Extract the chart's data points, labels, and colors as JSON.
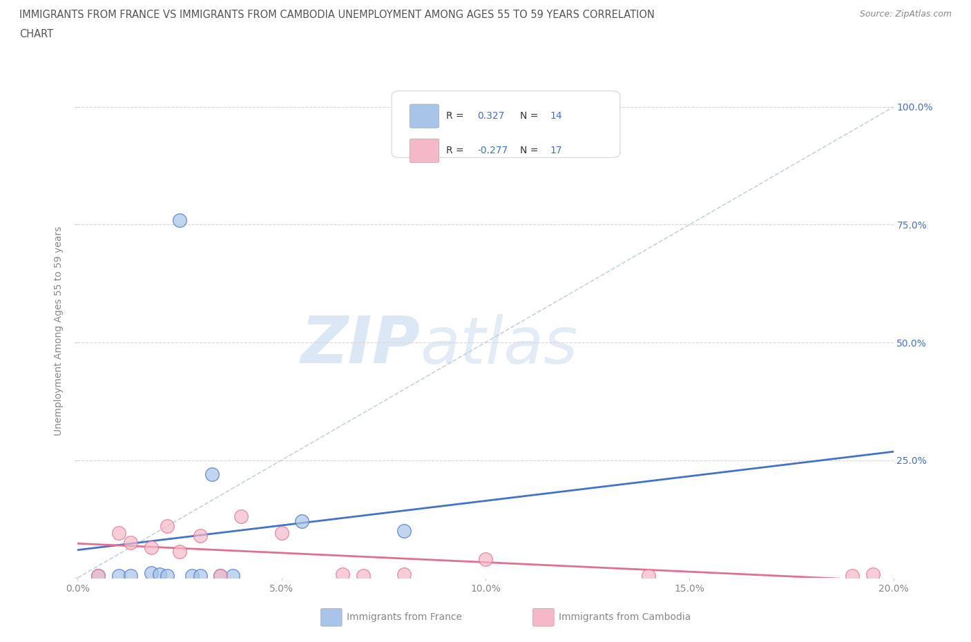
{
  "title_line1": "IMMIGRANTS FROM FRANCE VS IMMIGRANTS FROM CAMBODIA UNEMPLOYMENT AMONG AGES 55 TO 59 YEARS CORRELATION",
  "title_line2": "CHART",
  "source": "Source: ZipAtlas.com",
  "ylabel": "Unemployment Among Ages 55 to 59 years",
  "france_color": "#a8c4e8",
  "cambodia_color": "#f5b8c8",
  "france_line_color": "#4472c4",
  "cambodia_line_color": "#e07090",
  "trend_line_color": "#b8c8d8",
  "R_france": 0.327,
  "N_france": 14,
  "R_cambodia": -0.277,
  "N_cambodia": 17,
  "xlim": [
    0.0,
    0.2
  ],
  "ylim": [
    0.0,
    1.05
  ],
  "xticks": [
    0.0,
    0.05,
    0.1,
    0.15,
    0.2
  ],
  "xtick_labels": [
    "0.0%",
    "5.0%",
    "10.0%",
    "15.0%",
    "20.0%"
  ],
  "yticks": [
    0.0,
    0.25,
    0.5,
    0.75,
    1.0
  ],
  "ytick_labels_left": [
    "0.0%",
    "25.0%",
    "50.0%",
    "75.0%",
    "100.0%"
  ],
  "ytick_labels_right": [
    "",
    "25.0%",
    "50.0%",
    "75.0%",
    "100.0%"
  ],
  "france_x": [
    0.005,
    0.01,
    0.013,
    0.018,
    0.02,
    0.022,
    0.025,
    0.028,
    0.03,
    0.033,
    0.035,
    0.038,
    0.055,
    0.08
  ],
  "france_y": [
    0.005,
    0.005,
    0.005,
    0.01,
    0.008,
    0.005,
    0.76,
    0.005,
    0.005,
    0.22,
    0.005,
    0.005,
    0.12,
    0.1
  ],
  "cambodia_x": [
    0.005,
    0.01,
    0.013,
    0.018,
    0.022,
    0.025,
    0.03,
    0.035,
    0.04,
    0.05,
    0.065,
    0.07,
    0.08,
    0.1,
    0.14,
    0.19,
    0.195
  ],
  "cambodia_y": [
    0.005,
    0.095,
    0.075,
    0.065,
    0.11,
    0.055,
    0.09,
    0.005,
    0.13,
    0.095,
    0.008,
    0.005,
    0.008,
    0.04,
    0.005,
    0.005,
    0.008
  ],
  "watermark_zip": "ZIP",
  "watermark_atlas": "atlas",
  "background_color": "#ffffff",
  "grid_color": "#d8d8d8",
  "tick_label_color": "#888888",
  "right_tick_color": "#4472c4",
  "title_color": "#555555",
  "source_color": "#888888",
  "legend_text_color": "#333333",
  "legend_value_color": "#4472c4"
}
